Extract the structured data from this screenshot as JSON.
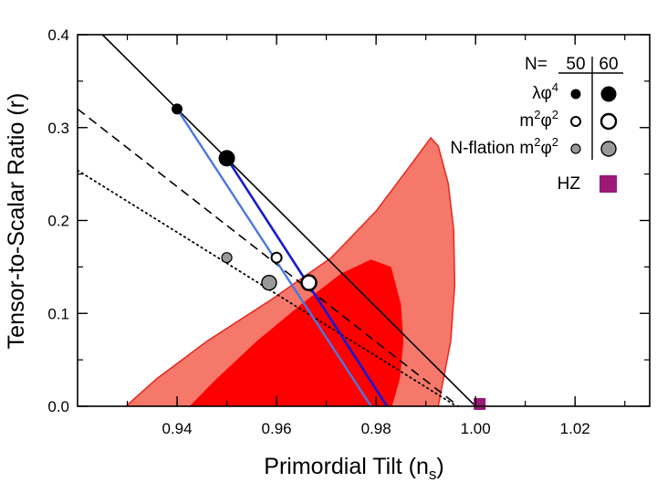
{
  "chart_data": {
    "type": "scatter",
    "xlabel": "Primordial Tilt (n",
    "xlabel_sub": "s",
    "xlabel_close": ")",
    "ylabel": "Tensor-to-Scalar Ratio (r)",
    "xlim": [
      0.92,
      1.035
    ],
    "ylim": [
      0.0,
      0.4
    ],
    "xticks": [
      0.94,
      0.96,
      0.98,
      1.0,
      1.02
    ],
    "xtick_labels": [
      "0.94",
      "0.96",
      "0.98",
      "1.00",
      "1.02"
    ],
    "yticks": [
      0.0,
      0.1,
      0.2,
      0.3,
      0.4
    ],
    "ytick_labels": [
      "0.0",
      "0.1",
      "0.2",
      "0.3",
      "0.4"
    ],
    "colors": {
      "outer_region": "#f5786a",
      "inner_region": "#ff0000",
      "region_edge": "#e8281e",
      "blue_line": "#1818d0",
      "light_blue_line": "#4a78e0",
      "gray_marker": "#999999",
      "hz_marker": "#9b1a78"
    },
    "regions": [
      {
        "name": "outer-confidence-region",
        "polygon": [
          [
            0.9297,
            0.0
          ],
          [
            0.936,
            0.03
          ],
          [
            0.946,
            0.07
          ],
          [
            0.959,
            0.115
          ],
          [
            0.971,
            0.16
          ],
          [
            0.98,
            0.21
          ],
          [
            0.987,
            0.26
          ],
          [
            0.991,
            0.289
          ],
          [
            0.9925,
            0.28
          ],
          [
            0.9945,
            0.24
          ],
          [
            0.9956,
            0.19
          ],
          [
            0.9958,
            0.13
          ],
          [
            0.995,
            0.07
          ],
          [
            0.9925,
            0.0
          ]
        ]
      },
      {
        "name": "inner-confidence-region",
        "polygon": [
          [
            0.9425,
            0.0
          ],
          [
            0.948,
            0.03
          ],
          [
            0.956,
            0.07
          ],
          [
            0.965,
            0.11
          ],
          [
            0.973,
            0.143
          ],
          [
            0.979,
            0.158
          ],
          [
            0.983,
            0.15
          ],
          [
            0.985,
            0.11
          ],
          [
            0.9855,
            0.07
          ],
          [
            0.9848,
            0.03
          ],
          [
            0.9832,
            0.0
          ]
        ]
      }
    ],
    "lines": [
      {
        "name": "lambda-phi4-line",
        "style": "solid",
        "color": "#000000",
        "width": 1.6,
        "points": [
          [
            0.925,
            0.4
          ],
          [
            1.0,
            0.0
          ]
        ]
      },
      {
        "name": "dashed-line",
        "style": "dashed",
        "color": "#000000",
        "width": 1.6,
        "points": [
          [
            0.92,
            0.32
          ],
          [
            0.9966,
            0.0
          ]
        ]
      },
      {
        "name": "dotted-line",
        "style": "dotted",
        "color": "#000000",
        "width": 1.8,
        "points": [
          [
            0.92,
            0.254
          ],
          [
            0.9962,
            0.0
          ]
        ]
      },
      {
        "name": "n50-connecting-line",
        "style": "solid",
        "color": "#4a78e0",
        "width": 2.4,
        "points": [
          [
            0.94,
            0.32
          ],
          [
            0.979,
            0.0
          ]
        ]
      },
      {
        "name": "n60-connecting-line",
        "style": "solid",
        "color": "#1818d0",
        "width": 2.6,
        "points": [
          [
            0.95,
            0.267
          ],
          [
            0.9822,
            0.0
          ]
        ]
      }
    ],
    "series": [
      {
        "name": "lambda-phi4-N50",
        "model": "λφ⁴",
        "N": 50,
        "x": 0.94,
        "y": 0.32,
        "marker": "filled-black-small"
      },
      {
        "name": "lambda-phi4-N60",
        "model": "λφ⁴",
        "N": 60,
        "x": 0.95,
        "y": 0.267,
        "marker": "filled-black-large"
      },
      {
        "name": "m2phi2-N50",
        "model": "m²φ²",
        "N": 50,
        "x": 0.96,
        "y": 0.16,
        "marker": "open-small"
      },
      {
        "name": "m2phi2-N60",
        "model": "m²φ²",
        "N": 60,
        "x": 0.9665,
        "y": 0.133,
        "marker": "open-large"
      },
      {
        "name": "nflation-N50",
        "model": "N-flation m²φ²",
        "N": 50,
        "x": 0.95,
        "y": 0.16,
        "marker": "gray-small"
      },
      {
        "name": "nflation-N60",
        "model": "N-flation m²φ²",
        "N": 60,
        "x": 0.9585,
        "y": 0.133,
        "marker": "gray-large"
      },
      {
        "name": "HZ",
        "model": "HZ",
        "x": 1.0,
        "y": 0.0,
        "marker": "square-purple"
      }
    ],
    "legend": {
      "placement": "top-right",
      "header_label": "N=",
      "col_labels": [
        "50",
        "60"
      ],
      "rows": [
        {
          "base": "λφ",
          "sup": "4",
          "marker": "black"
        },
        {
          "base": "m",
          "sup": "2",
          "base2": "φ",
          "sup2": "2",
          "marker": "open"
        },
        {
          "base": "N-flation m",
          "sup": "2",
          "base2": "φ",
          "sup2": "2",
          "marker": "gray"
        }
      ],
      "hz_label": "HZ"
    }
  }
}
